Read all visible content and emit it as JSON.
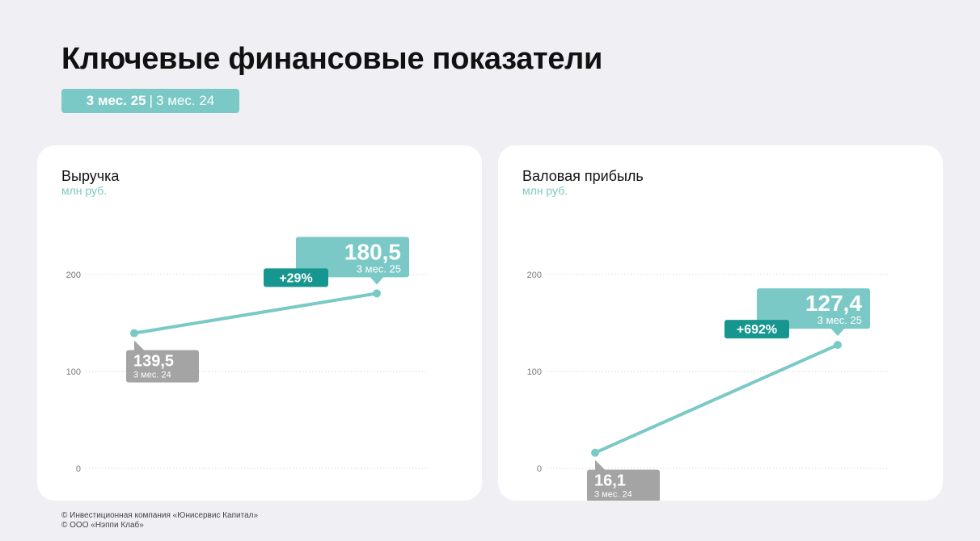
{
  "page": {
    "title": "Ключевые финансовые показатели",
    "period_current": "3 мес. 25",
    "period_separator": "|",
    "period_previous": "3 мес. 24"
  },
  "colors": {
    "accent": "#7ac9c6",
    "badge": "#17968f",
    "previous_label": "#a4a4a4",
    "grid": "#d9d9d9"
  },
  "chart_data": [
    {
      "type": "line",
      "title": "Выручка",
      "ylabel": "млн руб.",
      "ylim": [
        0,
        200
      ],
      "y_ticks": [
        "0",
        "100",
        "200"
      ],
      "grid": true,
      "x": [
        "3 мес. 24",
        "3 мес. 25"
      ],
      "values": [
        139.5,
        180.5
      ],
      "value_labels": [
        "139,5",
        "180,5"
      ],
      "change_label": "+29%"
    },
    {
      "type": "line",
      "title": "Валовая прибыль",
      "ylabel": "млн руб.",
      "ylim": [
        0,
        200
      ],
      "y_ticks": [
        "0",
        "100",
        "200"
      ],
      "grid": true,
      "x": [
        "3 мес. 24",
        "3 мес. 25"
      ],
      "values": [
        16.1,
        127.4
      ],
      "value_labels": [
        "16,1",
        "127,4"
      ],
      "change_label": "+692%"
    }
  ],
  "footer": {
    "line1": "© Инвестиционная компания «Юнисервис Капитал»",
    "line2": "© ООО «Нэппи Клаб»"
  }
}
